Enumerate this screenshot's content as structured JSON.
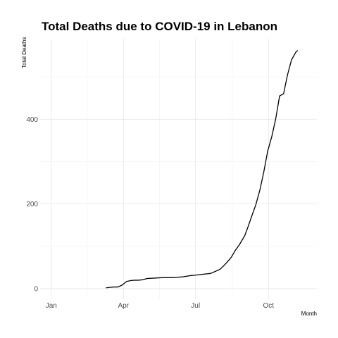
{
  "chart_data": {
    "type": "line",
    "title": "Total Deaths due to COVID-19 in Lebanon",
    "xlabel": "Month",
    "ylabel": "Total Deaths",
    "x_ticks": [
      "Jan",
      "Apr",
      "Jul",
      "Oct"
    ],
    "y_ticks": [
      0,
      200,
      400
    ],
    "ylim": [
      -25,
      590
    ],
    "xlim": [
      "2019-12-18",
      "2020-12-01"
    ],
    "grid": true,
    "legend": "none",
    "series": [
      {
        "color": "#000000",
        "x": [
          "2020-03-10",
          "2020-03-15",
          "2020-03-20",
          "2020-03-25",
          "2020-03-30",
          "2020-04-05",
          "2020-04-10",
          "2020-04-15",
          "2020-04-20",
          "2020-04-25",
          "2020-05-01",
          "2020-05-10",
          "2020-05-20",
          "2020-06-01",
          "2020-06-15",
          "2020-06-25",
          "2020-07-01",
          "2020-07-10",
          "2020-07-20",
          "2020-07-25",
          "2020-08-01",
          "2020-08-05",
          "2020-08-10",
          "2020-08-15",
          "2020-08-20",
          "2020-08-25",
          "2020-09-01",
          "2020-09-05",
          "2020-09-10",
          "2020-09-15",
          "2020-09-20",
          "2020-09-25",
          "2020-09-30",
          "2020-10-05",
          "2020-10-10",
          "2020-10-15",
          "2020-10-20",
          "2020-10-25",
          "2020-10-30",
          "2020-11-05",
          "2020-11-07"
        ],
        "y": [
          2,
          3,
          4,
          4,
          8,
          17,
          19,
          20,
          20,
          21,
          24,
          25,
          26,
          26,
          28,
          31,
          32,
          34,
          36,
          40,
          46,
          53,
          63,
          74,
          90,
          103,
          125,
          145,
          172,
          198,
          232,
          275,
          325,
          358,
          400,
          455,
          460,
          505,
          540,
          560,
          562
        ]
      }
    ]
  }
}
